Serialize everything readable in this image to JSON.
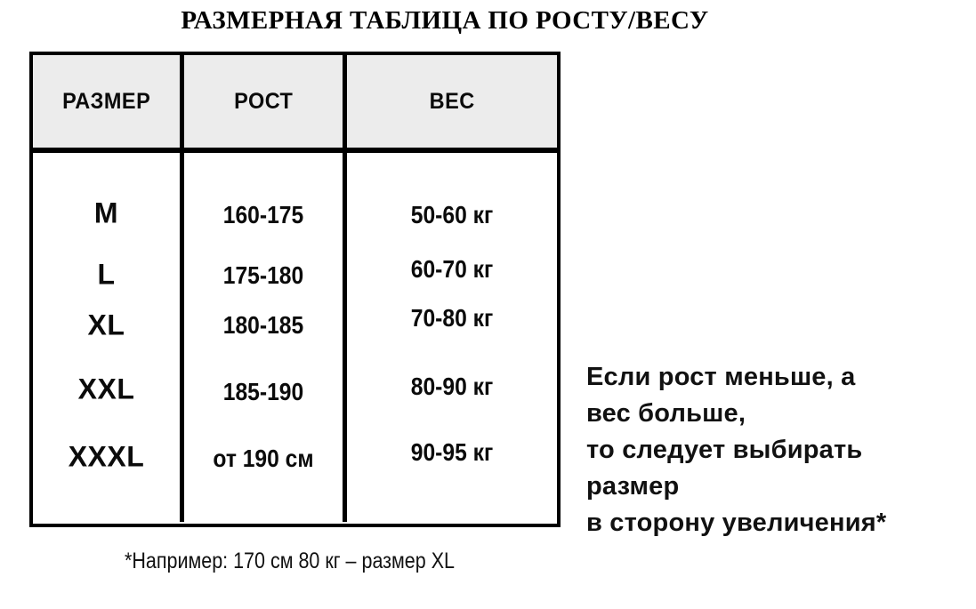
{
  "chart_data": {
    "type": "table",
    "title": "РАЗМЕРНАЯ ТАБЛИЦА ПО РОСТУ/ВЕСУ",
    "columns": [
      "РАЗМЕР",
      "РОСТ",
      "ВЕС"
    ],
    "rows": [
      [
        "M",
        "160-175",
        "50-60 кг"
      ],
      [
        "L",
        "175-180",
        "60-70 кг"
      ],
      [
        "XL",
        "180-185",
        "70-80 кг"
      ],
      [
        "XXL",
        "185-190",
        "80-90 кг"
      ],
      [
        "XXXL",
        "от 190 см",
        "90-95 кг"
      ]
    ],
    "layout_hints": {
      "header_background": "#ececec",
      "border_color": "#000000",
      "grid": "outer border, column dividers, header underline only; no row lines in body"
    }
  },
  "note_lines": [
    "Если рост меньше, а",
    "вес больше,",
    "то следует выбирать",
    "размер",
    "в сторону увеличения*"
  ],
  "footnote": "*Например: 170 см 80 кг – размер XL",
  "colors": {
    "background": "#ffffff",
    "header_bg": "#ececec",
    "border": "#000000",
    "text": "#111111"
  }
}
